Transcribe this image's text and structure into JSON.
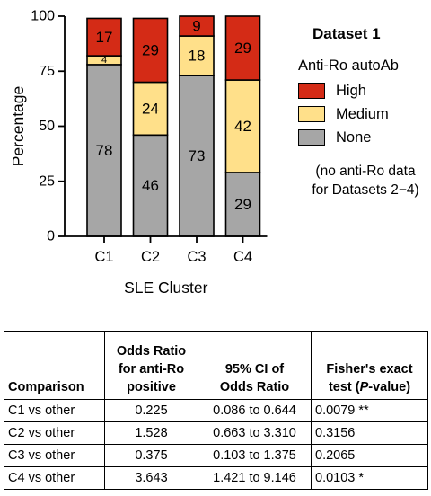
{
  "chart_data": {
    "type": "bar",
    "stacked": true,
    "categories": [
      "C1",
      "C2",
      "C3",
      "C4"
    ],
    "series": [
      {
        "name": "None",
        "values": [
          78,
          46,
          73,
          29
        ],
        "color": "#a6a6a6"
      },
      {
        "name": "Medium",
        "values": [
          4,
          24,
          18,
          42
        ],
        "color": "#ffe08a"
      },
      {
        "name": "High",
        "values": [
          17,
          29,
          9,
          29
        ],
        "color": "#d42b16"
      }
    ],
    "title": "Dataset 1",
    "xlabel": "SLE Cluster",
    "ylabel": "Percentage",
    "ylim": [
      0,
      100
    ],
    "yticks": [
      "0",
      "25",
      "50",
      "75",
      "100"
    ],
    "legend_title": "Anti-Ro autoAb",
    "legend_order": [
      "High",
      "Medium",
      "None"
    ],
    "legend_position": "right",
    "note": "(no anti-Ro data\nfor Datasets 2−4)",
    "grid": false
  },
  "table": {
    "headers": [
      "Comparison",
      "Odds Ratio for anti-Ro positive",
      "95% CI of Odds Ratio",
      "Fisher's exact test (P-value)"
    ],
    "rows": [
      [
        "C1 vs other",
        "0.225",
        "0.086 to 0.644",
        "0.0079 **"
      ],
      [
        "C2 vs other",
        "1.528",
        "0.663 to 3.310",
        "0.3156"
      ],
      [
        "C3 vs other",
        "0.375",
        "0.103 to 1.375",
        "0.2065"
      ],
      [
        "C4 vs other",
        "3.643",
        "1.421 to 9.146",
        "0.0103 *"
      ]
    ]
  }
}
